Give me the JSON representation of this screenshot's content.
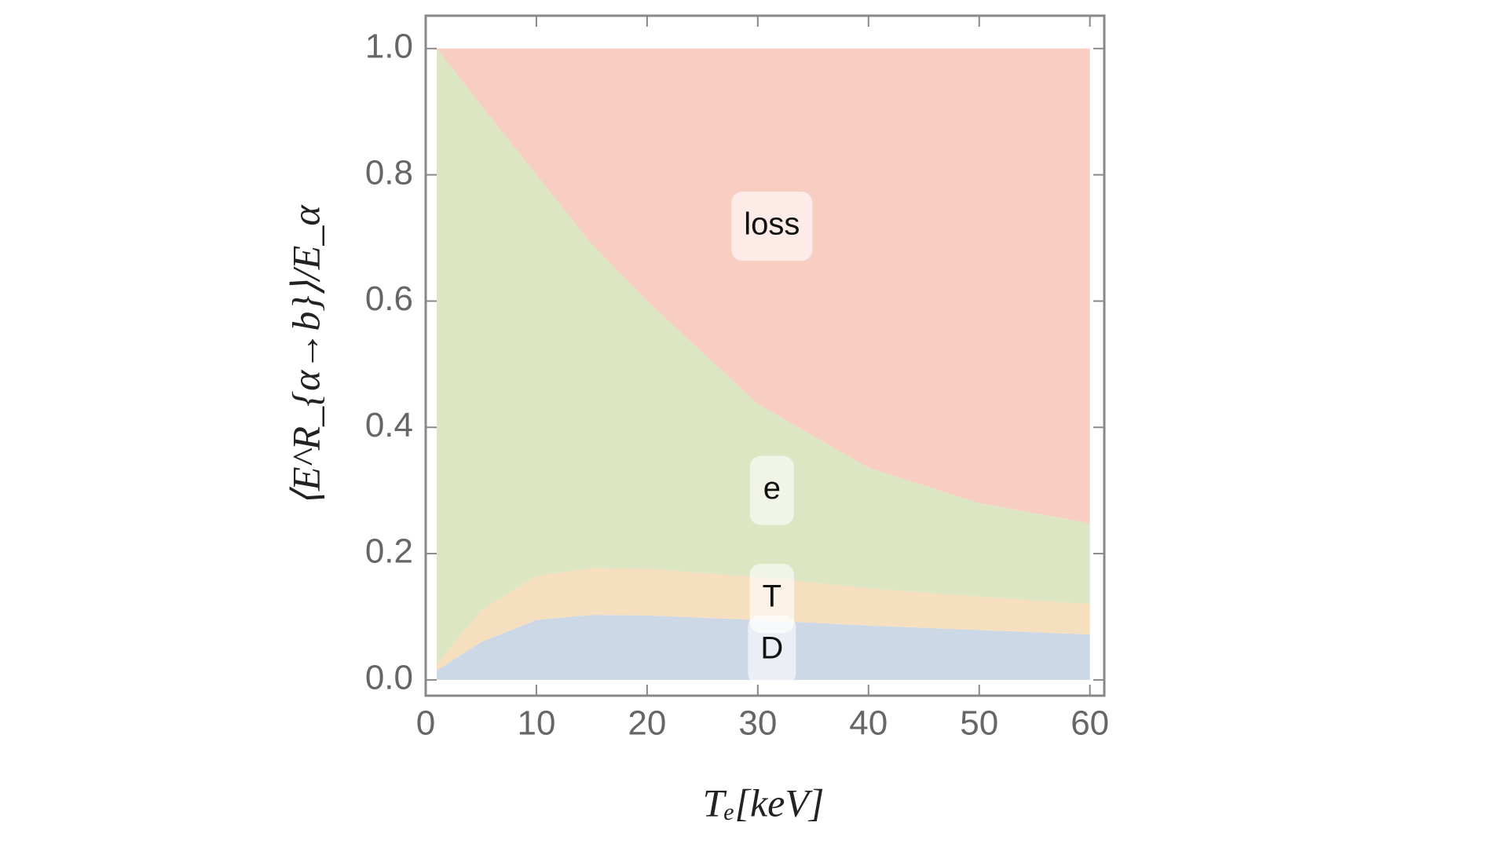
{
  "chart_data": {
    "type": "stacked-area",
    "xlabel": "Tₑ[keV]",
    "ylabel": "⟨E^R_{α→b}⟩/E_α",
    "x": [
      1,
      5,
      10,
      15,
      20,
      30,
      40,
      50,
      60
    ],
    "series": [
      {
        "name": "D",
        "color": "#cdd8e6",
        "values": [
          0.015,
          0.06,
          0.095,
          0.103,
          0.102,
          0.095,
          0.086,
          0.079,
          0.072
        ]
      },
      {
        "name": "T",
        "color": "#f6dfbf",
        "values": [
          0.01,
          0.05,
          0.07,
          0.074,
          0.074,
          0.068,
          0.059,
          0.053,
          0.048
        ]
      },
      {
        "name": "e",
        "color": "#dde6c3",
        "values": [
          0.975,
          0.8,
          0.635,
          0.513,
          0.424,
          0.274,
          0.191,
          0.148,
          0.128
        ]
      },
      {
        "name": "loss",
        "color": "#f8cdc2",
        "values": [
          0,
          0.09,
          0.2,
          0.31,
          0.4,
          0.563,
          0.664,
          0.72,
          0.752
        ]
      }
    ],
    "xlim": [
      0,
      61.3
    ],
    "ylim": [
      -0.025,
      1.052
    ],
    "xticks": [
      0,
      10,
      20,
      30,
      40,
      50,
      60
    ],
    "yticks": [
      {
        "value": 0,
        "label": "0.0"
      },
      0.2,
      0.4,
      0.6,
      0.8,
      {
        "value": 1,
        "label": "1.0"
      }
    ]
  }
}
